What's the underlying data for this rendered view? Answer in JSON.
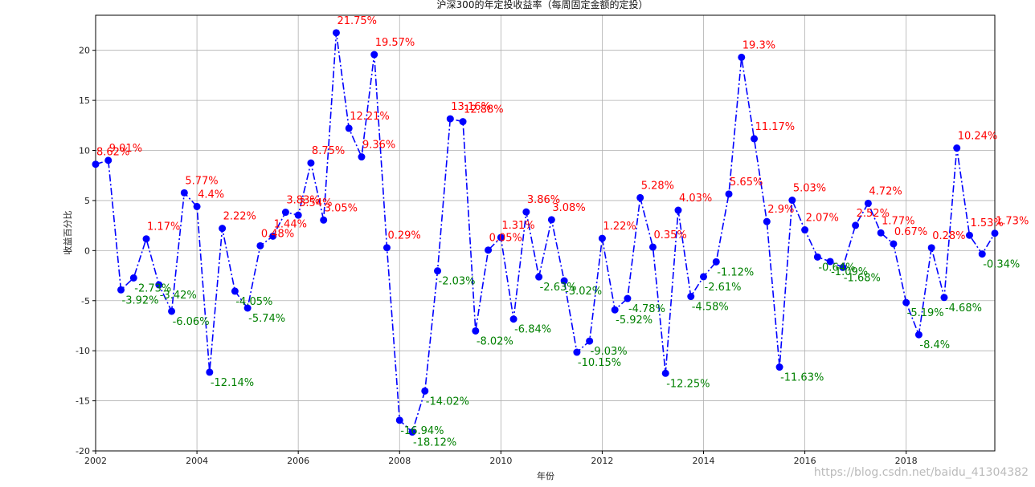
{
  "chart_data": {
    "type": "line",
    "title": "沪深300的年定投收益率（每周固定金额的定投）",
    "xlabel": "年份",
    "ylabel": "收益百分比",
    "xlim": [
      2002,
      2019.75
    ],
    "ylim": [
      -20,
      23.5
    ],
    "x_ticks": [
      2002,
      2004,
      2006,
      2008,
      2010,
      2012,
      2014,
      2016,
      2018
    ],
    "y_ticks": [
      -20,
      -15,
      -10,
      -5,
      0,
      5,
      10,
      15,
      20
    ],
    "grid": true,
    "line_color": "#0000ff",
    "line_style": "dash-dot",
    "positive_label_color": "#ff0000",
    "negative_label_color": "#008000",
    "series": [
      {
        "x": [
          2002.0,
          2002.25,
          2002.5,
          2002.75,
          2003.0,
          2003.25,
          2003.5,
          2003.75,
          2004.0,
          2004.25,
          2004.5,
          2004.75,
          2005.0,
          2005.25,
          2005.5,
          2005.75,
          2006.0,
          2006.25,
          2006.5,
          2006.75,
          2007.0,
          2007.25,
          2007.5,
          2007.75,
          2008.0,
          2008.25,
          2008.5,
          2008.75,
          2009.0,
          2009.25,
          2009.5,
          2009.75,
          2010.0,
          2010.25,
          2010.5,
          2010.75,
          2011.0,
          2011.25,
          2011.5,
          2011.75,
          2012.0,
          2012.25,
          2012.5,
          2012.75,
          2013.0,
          2013.25,
          2013.5,
          2013.75,
          2014.0,
          2014.25,
          2014.5,
          2014.75,
          2015.0,
          2015.25,
          2015.5,
          2015.75,
          2016.0,
          2016.25,
          2016.5,
          2016.75,
          2017.0,
          2017.25,
          2017.5,
          2017.75,
          2018.0,
          2018.25,
          2018.5,
          2018.75,
          2019.0,
          2019.25,
          2019.5,
          2019.75
        ],
        "y": [
          8.62,
          9.01,
          -3.92,
          -2.73,
          1.17,
          -3.42,
          -6.06,
          5.77,
          4.4,
          -12.14,
          2.22,
          -4.05,
          -5.74,
          0.48,
          1.44,
          3.83,
          3.54,
          8.75,
          3.05,
          21.75,
          12.21,
          9.36,
          19.57,
          0.29,
          -16.94,
          -18.12,
          -14.02,
          -2.03,
          13.16,
          12.88,
          -8.02,
          0.05,
          1.31,
          -6.84,
          3.86,
          -2.63,
          3.08,
          -3.02,
          -10.15,
          -9.03,
          1.22,
          -5.92,
          -4.78,
          5.28,
          0.35,
          -12.25,
          4.03,
          -4.58,
          -2.61,
          -1.12,
          5.65,
          19.3,
          11.17,
          2.9,
          -11.63,
          5.03,
          2.07,
          -0.64,
          -1.09,
          -1.68,
          2.52,
          4.72,
          1.77,
          0.67,
          -5.19,
          -8.4,
          0.28,
          -4.68,
          10.24,
          1.53,
          -0.34,
          1.73
        ]
      }
    ],
    "data_labels": [
      "8.62%",
      "9.01%",
      "-3.92%",
      "-2.73%",
      "1.17%",
      "-3.42%",
      "-6.06%",
      "5.77%",
      "4.4%",
      "-12.14%",
      "2.22%",
      "-4.05%",
      "-5.74%",
      "0.48%",
      "1.44%",
      "3.83%",
      "3.54%",
      "8.75%",
      "3.05%",
      "21.75%",
      "12.21%",
      "9.36%",
      "19.57%",
      "0.29%",
      "-16.94%",
      "-18.12%",
      "-14.02%",
      "-2.03%",
      "13.16%",
      "12.88%",
      "-8.02%",
      "0.05%",
      "1.31%",
      "-6.84%",
      "3.86%",
      "-2.63%",
      "3.08%",
      "-3.02%",
      "-10.15%",
      "-9.03%",
      "1.22%",
      "-5.92%",
      "-4.78%",
      "5.28%",
      "0.35%",
      "-12.25%",
      "4.03%",
      "-4.58%",
      "-2.61%",
      "-1.12%",
      "5.65%",
      "19.3%",
      "11.17%",
      "2.9%",
      "-11.63%",
      "5.03%",
      "2.07%",
      "-0.64%",
      "-1.09%",
      "-1.68%",
      "2.52%",
      "4.72%",
      "1.77%",
      "0.67%",
      "-5.19%",
      "-8.4%",
      "0.28%",
      "-4.68%",
      "10.24%",
      "1.53%",
      "-0.34%",
      "1.73%"
    ]
  },
  "watermark": "https://blog.csdn.net/baidu_41304382"
}
